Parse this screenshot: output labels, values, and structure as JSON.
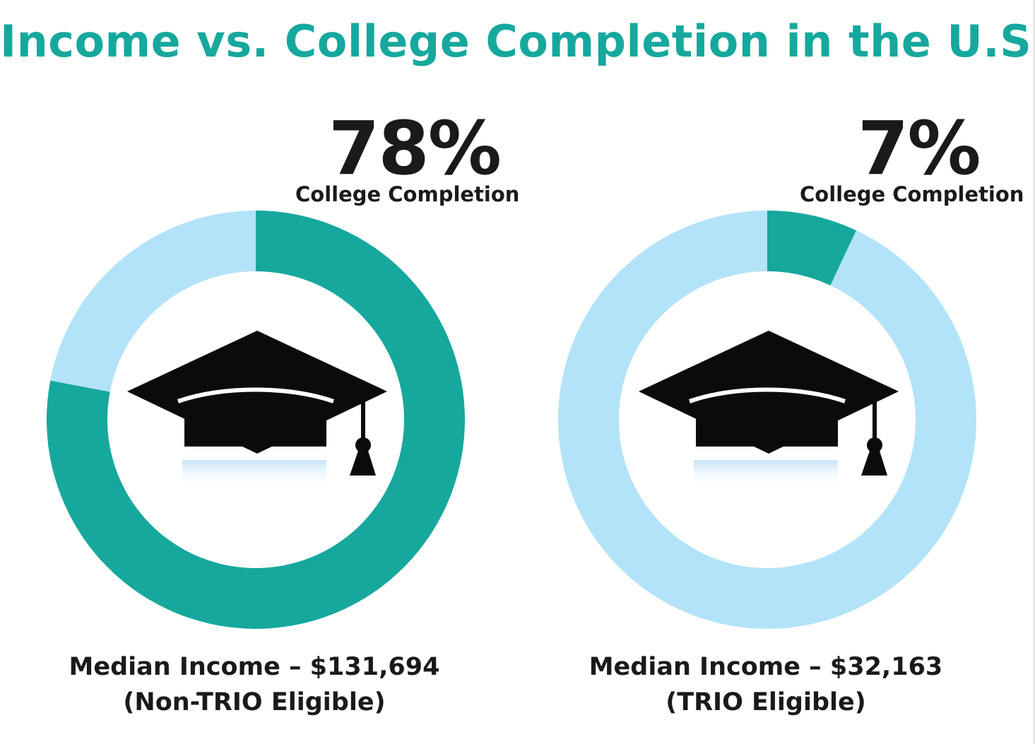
{
  "title": "Income vs. College Completion in the U.S.",
  "colors": {
    "title": "#16a89d",
    "completed": "#16a89d",
    "remaining": "#b3e3f8",
    "text": "#1a1a1a",
    "cap": "#0b0b0b",
    "cap_reflection": "#bfe3f6"
  },
  "icons": [
    "graduation-cap-icon"
  ],
  "panels": [
    {
      "percent_label": "78%",
      "completion_label": "College Completion",
      "income_line": "Median Income – $131,694",
      "group_line": "(Non-TRIO Eligible)"
    },
    {
      "percent_label": "7%",
      "completion_label": "College Completion",
      "income_line": "Median Income – $32,163",
      "group_line": "(TRIO Eligible)"
    }
  ],
  "chart_data": [
    {
      "type": "pie",
      "categories": [
        "College Completion",
        ""
      ],
      "values": [
        78,
        22
      ],
      "annotations": [
        "Median Income – $131,694",
        "(Non-TRIO Eligible)"
      ]
    },
    {
      "type": "pie",
      "categories": [
        "College Completion",
        ""
      ],
      "values": [
        7,
        93
      ],
      "annotations": [
        "Median Income – $32,163",
        "(TRIO Eligible)"
      ]
    }
  ]
}
